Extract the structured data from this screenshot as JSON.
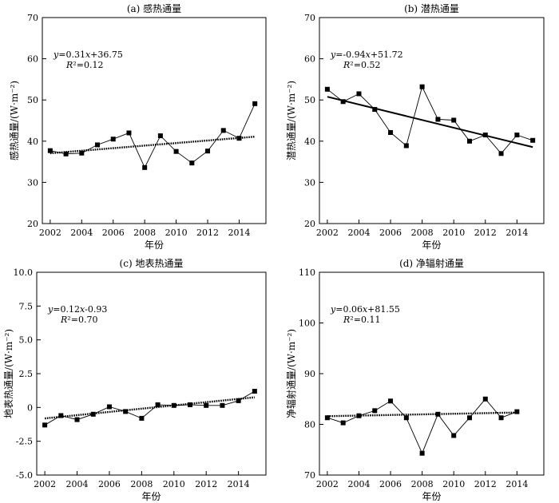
{
  "chart_data": [
    {
      "type": "line",
      "title": "(a) 感热通量",
      "xlabel": "年份",
      "ylabel": "感热通量/(W·m⁻²)",
      "equation": "y=0.31x+36.75",
      "r2": "R²=0.12",
      "xlim": [
        2001.5,
        2015.7
      ],
      "ylim": [
        20,
        70
      ],
      "xticks": [
        2002,
        2004,
        2006,
        2008,
        2010,
        2012,
        2014
      ],
      "yticks": [
        20,
        30,
        40,
        50,
        60,
        70
      ],
      "ytick_labels": [
        "20",
        "30",
        "40",
        "50",
        "60",
        "70"
      ],
      "x": [
        2002,
        2003,
        2004,
        2005,
        2006,
        2007,
        2008,
        2009,
        2010,
        2011,
        2012,
        2013,
        2014,
        2015
      ],
      "values": [
        37.7,
        36.9,
        37.1,
        39.1,
        40.5,
        42.0,
        33.6,
        41.3,
        37.5,
        34.7,
        37.6,
        42.6,
        40.7,
        49.1
      ],
      "trend": {
        "slope": 0.31,
        "intercept": 36.75,
        "style": "dotted"
      }
    },
    {
      "type": "line",
      "title": "(b) 潜热通量",
      "xlabel": "年份",
      "ylabel": "潜热通量/(W·m⁻²)",
      "equation": "y=-0.94x+51.72",
      "r2": "R²=0.52",
      "xlim": [
        2001.5,
        2015.7
      ],
      "ylim": [
        20,
        70
      ],
      "xticks": [
        2002,
        2004,
        2006,
        2008,
        2010,
        2012,
        2014
      ],
      "yticks": [
        20,
        30,
        40,
        50,
        60,
        70
      ],
      "ytick_labels": [
        "20",
        "30",
        "40",
        "50",
        "60",
        "70"
      ],
      "x": [
        2002,
        2003,
        2004,
        2005,
        2006,
        2007,
        2008,
        2009,
        2010,
        2011,
        2012,
        2013,
        2014,
        2015
      ],
      "values": [
        52.6,
        49.6,
        51.5,
        47.7,
        42.1,
        38.9,
        53.2,
        45.3,
        45.1,
        40.0,
        41.5,
        37.0,
        41.5,
        40.2
      ],
      "trend": {
        "slope": -0.94,
        "intercept": 51.72,
        "style": "solid"
      }
    },
    {
      "type": "line",
      "title": "(c) 地表热通量",
      "xlabel": "年份",
      "ylabel": "地表热通量/(W·m⁻²)",
      "equation": "y=0.12x-0.93",
      "r2": "R²=0.70",
      "xlim": [
        2001.5,
        2015.7
      ],
      "ylim": [
        -5,
        10
      ],
      "xticks": [
        2002,
        2004,
        2006,
        2008,
        2010,
        2012,
        2014
      ],
      "yticks": [
        -5,
        -2.5,
        0,
        2.5,
        5,
        7.5,
        10
      ],
      "ytick_labels": [
        "-5.0",
        "-2.5",
        "0",
        "2.5",
        "5.0",
        "7.5",
        "10.0"
      ],
      "x": [
        2002,
        2003,
        2004,
        2005,
        2006,
        2007,
        2008,
        2009,
        2010,
        2011,
        2012,
        2013,
        2014,
        2015
      ],
      "values": [
        -1.3,
        -0.6,
        -0.9,
        -0.5,
        0.05,
        -0.3,
        -0.8,
        0.2,
        0.15,
        0.2,
        0.15,
        0.15,
        0.5,
        1.2
      ],
      "trend": {
        "slope": 0.12,
        "intercept": -0.93,
        "style": "dotted"
      }
    },
    {
      "type": "line",
      "title": "(d) 净辐射通量",
      "xlabel": "年份",
      "ylabel": "净辐射通量/(W·m⁻²)",
      "equation": "y=0.06x+81.55",
      "r2": "R²=0.11",
      "xlim": [
        2001.5,
        2015.7
      ],
      "ylim": [
        70,
        110
      ],
      "xticks": [
        2002,
        2004,
        2006,
        2008,
        2010,
        2012,
        2014
      ],
      "yticks": [
        70,
        80,
        90,
        100,
        110
      ],
      "ytick_labels": [
        "70",
        "80",
        "90",
        "100",
        "110"
      ],
      "x": [
        2002,
        2003,
        2004,
        2005,
        2006,
        2007,
        2008,
        2009,
        2010,
        2011,
        2012,
        2013,
        2014
      ],
      "values": [
        81.3,
        80.3,
        81.7,
        82.7,
        84.6,
        81.3,
        74.3,
        82.0,
        77.8,
        81.3,
        85.0,
        81.3,
        82.5
      ],
      "trend": {
        "slope": 0.06,
        "intercept": 81.55,
        "style": "dotted"
      }
    }
  ]
}
